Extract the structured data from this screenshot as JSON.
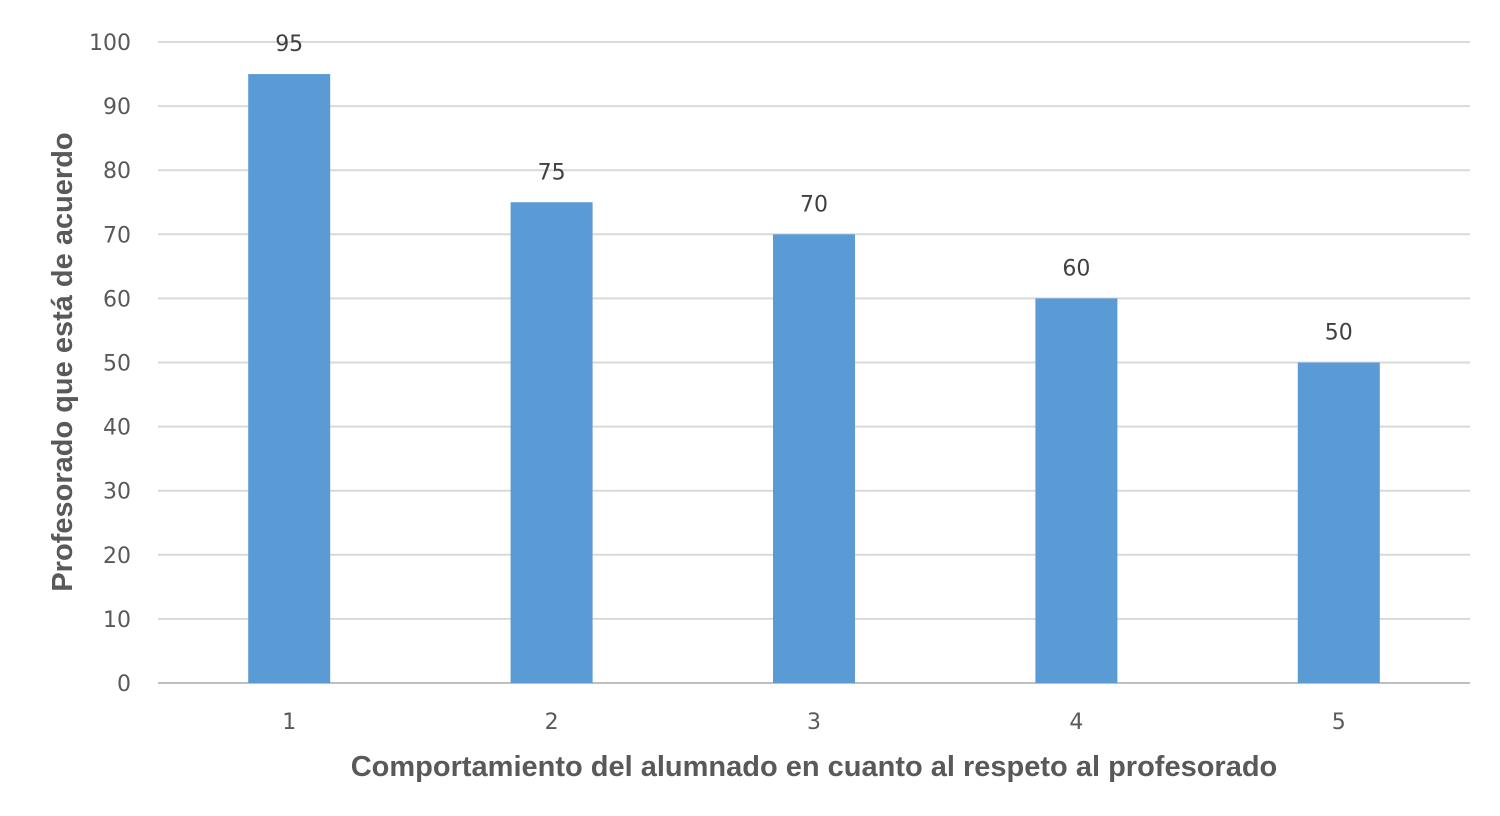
{
  "chart_data": {
    "type": "bar",
    "categories": [
      "1",
      "2",
      "3",
      "4",
      "5"
    ],
    "values": [
      95,
      75,
      70,
      60,
      50
    ],
    "data_labels": [
      "95",
      "75",
      "70",
      "60",
      "50"
    ],
    "xlabel": "Comportamiento del alumnado en cuanto al respeto al profesorado",
    "ylabel": "Profesorado que está de acuerdo",
    "ylim": [
      0,
      100
    ],
    "yticks": [
      "0",
      "10",
      "20",
      "30",
      "40",
      "50",
      "60",
      "70",
      "80",
      "90",
      "100"
    ],
    "grid": true,
    "legend": "none",
    "colors": {
      "bar": "#5b9bd5",
      "grid": "#d9d9d9",
      "axis": "#bfbfbf"
    }
  }
}
